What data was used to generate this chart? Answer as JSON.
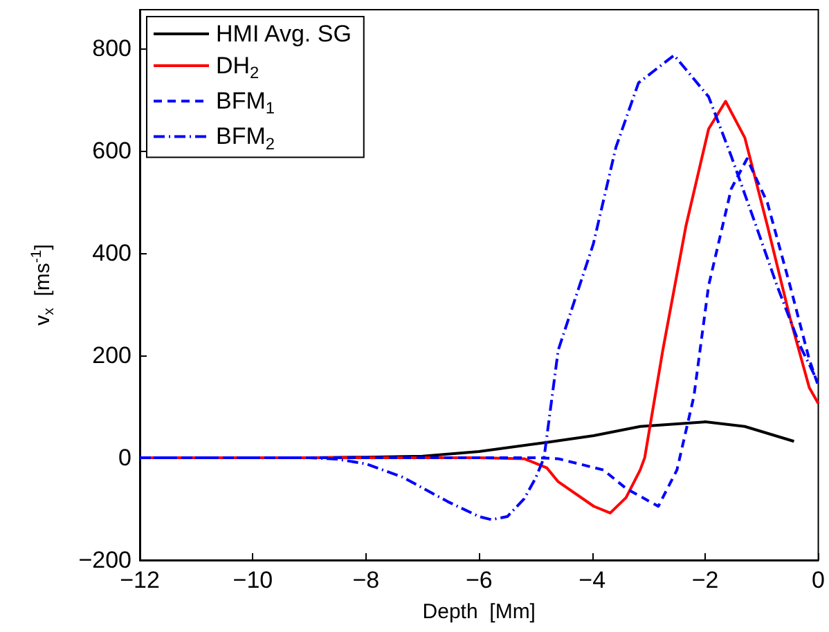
{
  "chart_data": {
    "type": "line",
    "xlabel": "Depth  [Mm]",
    "ylabel": "v$_{x}$  [ms$^{-1}$]",
    "xlim": [
      -12,
      0
    ],
    "xticks": [
      -12,
      -10,
      -8,
      -6,
      -4,
      -2,
      0
    ],
    "ylim": [
      -200,
      875
    ],
    "yticks": [
      -200,
      0,
      200,
      400,
      600,
      800
    ],
    "grid": false,
    "legend": "top left",
    "marker": "none",
    "series": [
      {
        "name": "HMI Avg. SG",
        "color": "#000000",
        "line_style": "solid",
        "x": [
          -12,
          -9,
          -8,
          -7,
          -6,
          -4.8,
          -3.97,
          -3.15,
          -2,
          -1.3,
          -0.43
        ],
        "values": [
          0,
          0,
          1,
          3,
          12,
          30,
          43,
          61,
          70,
          61,
          32
        ]
      },
      {
        "name": "DH$_{2}$",
        "color": "#ff0000",
        "line_style": "solid",
        "x": [
          -12,
          -6,
          -5.2,
          -4.8,
          -4.6,
          -3.97,
          -3.68,
          -3.4,
          -3.15,
          -3.07,
          -2.75,
          -2.34,
          -1.94,
          -1.64,
          -1.3,
          -0.9,
          -0.5,
          -0.16,
          0
        ],
        "values": [
          0,
          0,
          -2,
          -20,
          -47,
          -95,
          -108,
          -78,
          -24,
          0,
          210,
          453,
          642,
          696,
          625,
          453,
          273,
          137,
          106
        ]
      },
      {
        "name": "BFM$_{1}$",
        "color": "#0000ff",
        "line_style": "dashed",
        "x": [
          -12,
          -5,
          -4.6,
          -3.8,
          -3.4,
          -2.83,
          -2.5,
          -2.2,
          -1.94,
          -1.54,
          -1.26,
          -0.9,
          -0.5,
          -0.16,
          0
        ],
        "values": [
          0,
          0,
          -2,
          -24,
          -60,
          -95,
          -24,
          120,
          336,
          525,
          584,
          498,
          336,
          192,
          140
        ]
      },
      {
        "name": "BFM$_{2}$",
        "color": "#0000ff",
        "line_style": "dashdot",
        "x": [
          -12,
          -9,
          -8.5,
          -8,
          -7.35,
          -6.55,
          -6,
          -5.78,
          -5.5,
          -5.2,
          -5,
          -4.85,
          -4.6,
          -3.98,
          -3.58,
          -3.18,
          -2.55,
          -1.94,
          -1.54,
          -1.13,
          -0.73,
          -0.32,
          0
        ],
        "values": [
          0,
          0,
          -3,
          -12,
          -38,
          -86,
          -115,
          -121,
          -115,
          -80,
          -40,
          0,
          210,
          417,
          606,
          732,
          786,
          705,
          589,
          462,
          336,
          218,
          146
        ]
      }
    ]
  }
}
